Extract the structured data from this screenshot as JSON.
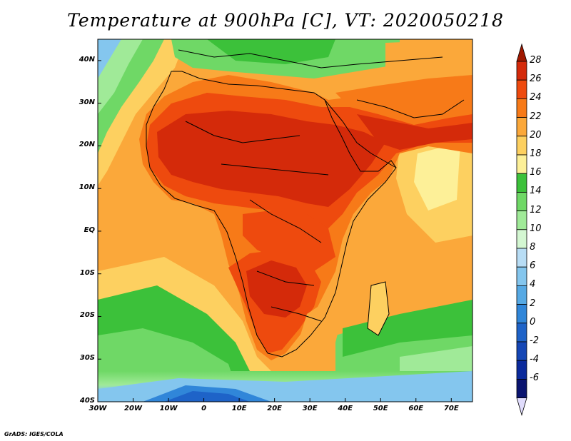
{
  "title": "Temperature at 900hPa [C], VT: 2020050218",
  "credit": "GrADS: IGES/COLA",
  "map": {
    "lon_range": [
      -30,
      76
    ],
    "lat_range": [
      -40,
      45
    ],
    "x_ticks": [
      "30W",
      "20W",
      "10W",
      "0",
      "10E",
      "20E",
      "30E",
      "40E",
      "50E",
      "60E",
      "70E"
    ],
    "y_ticks": [
      "40N",
      "30N",
      "20N",
      "10N",
      "EQ",
      "10S",
      "20S",
      "30S",
      "40S"
    ]
  },
  "colorbar": {
    "labels": [
      "28",
      "26",
      "24",
      "22",
      "20",
      "18",
      "16",
      "14",
      "12",
      "10",
      "8",
      "6",
      "4",
      "2",
      "0",
      "-2",
      "-4",
      "-6"
    ],
    "colors": [
      "#a01800",
      "#d42a0a",
      "#ee4a0e",
      "#f77a18",
      "#fba83a",
      "#fdd060",
      "#fdf098",
      "#3cc13a",
      "#6fd866",
      "#a0ea98",
      "#d4f7d2",
      "#b8ddf5",
      "#84c6ee",
      "#56a9e4",
      "#3086d9",
      "#1e63c8",
      "#1446b5",
      "#0b2a9c",
      "#0a1470"
    ],
    "overflow_low": "#e0dcfc"
  }
}
